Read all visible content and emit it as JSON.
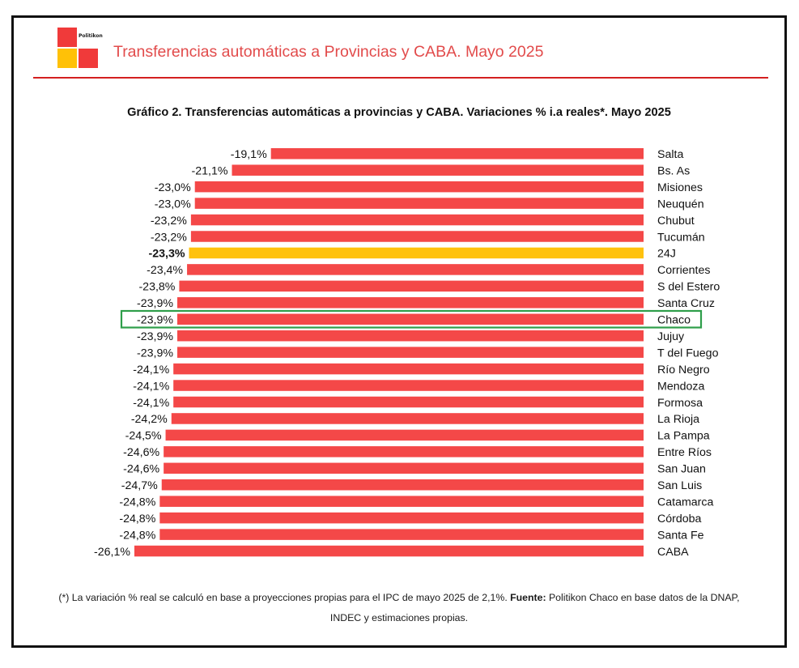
{
  "header": {
    "logo_text": "Politikon",
    "title": "Transferencias automáticas a Provincias y CABA. Mayo 2025"
  },
  "chart_data": {
    "type": "bar",
    "orientation": "horizontal",
    "title": "Gráfico 2. Transferencias automáticas a provincias y CABA. Variaciones % i.a reales*. Mayo 2025",
    "categories": [
      "Salta",
      "Bs. As",
      "Misiones",
      "Neuquén",
      "Chubut",
      "Tucumán",
      "24J",
      "Corrientes",
      "S del Estero",
      "Santa Cruz",
      "Chaco",
      "Jujuy",
      "T del Fuego",
      "Río Negro",
      "Mendoza",
      "Formosa",
      "La Rioja",
      "La Pampa",
      "Entre Ríos",
      "San Juan",
      "San Luis",
      "Catamarca",
      "Córdoba",
      "Santa Fe",
      "CABA"
    ],
    "values": [
      -19.1,
      -21.1,
      -23.0,
      -23.0,
      -23.2,
      -23.2,
      -23.3,
      -23.4,
      -23.8,
      -23.9,
      -23.9,
      -23.9,
      -23.9,
      -24.1,
      -24.1,
      -24.1,
      -24.2,
      -24.5,
      -24.6,
      -24.6,
      -24.7,
      -24.8,
      -24.8,
      -24.8,
      -26.1
    ],
    "value_labels": [
      "-19,1%",
      "-21,1%",
      "-23,0%",
      "-23,0%",
      "-23,2%",
      "-23,2%",
      "-23,3%",
      "-23,4%",
      "-23,8%",
      "-23,9%",
      "-23,9%",
      "-23,9%",
      "-23,9%",
      "-24,1%",
      "-24,1%",
      "-24,1%",
      "-24,2%",
      "-24,5%",
      "-24,6%",
      "-24,6%",
      "-24,7%",
      "-24,8%",
      "-24,8%",
      "-24,8%",
      "-26,1%"
    ],
    "highlight_category": "24J",
    "boxed_category": "Chaco",
    "colors": {
      "bar": "#f44848",
      "highlight": "#ffc20e",
      "box": "#2e9e4a"
    },
    "grid": false,
    "legend": "none"
  },
  "footnote": {
    "note": "(*) La variación % real se calculó en base a proyecciones propias para el IPC de mayo 2025 de 2,1%.",
    "source_label": "Fuente:",
    "source_text": "Politikon Chaco en base datos de la DNAP, INDEC y estimaciones propias."
  }
}
